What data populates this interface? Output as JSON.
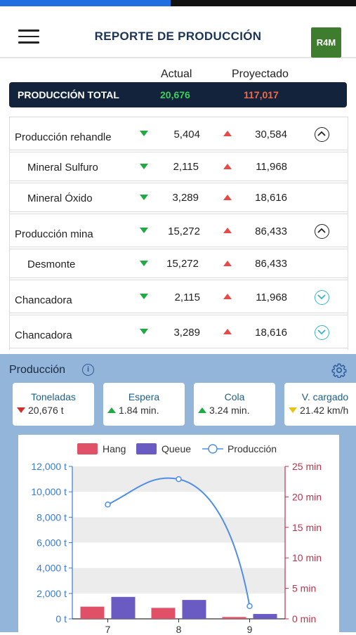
{
  "progress": {
    "fraction": 0.48,
    "colors": {
      "fill": "#1f6fe0",
      "track": "#111111"
    }
  },
  "header": {
    "title": "REPORTE DE PRODUCCIÓN",
    "menu_icon": "hamburger-menu-icon",
    "logo_text": "R4M"
  },
  "columns": {
    "actual": "Actual",
    "projected": "Proyectado"
  },
  "total": {
    "label": "PRODUCCIÓN TOTAL",
    "actual": "20,676",
    "projected": "117,017",
    "colors": {
      "actual": "#3ecf5a",
      "projected": "#f06a4b"
    }
  },
  "rows": [
    {
      "name": "Producción rehandle",
      "actual": "5,404",
      "projected": "30,584",
      "expanded": true
    },
    {
      "name": "Mineral Sulfuro",
      "actual": "2,115",
      "projected": "11,968"
    },
    {
      "name": "Mineral Óxido",
      "actual": "3,289",
      "projected": "18,616"
    },
    {
      "name": "Producción mina",
      "actual": "15,272",
      "projected": "86,433",
      "expanded": true
    },
    {
      "name": "Desmonte",
      "actual": "15,272",
      "projected": "86,433"
    },
    {
      "name": "Chancadora",
      "actual": "2,115",
      "projected": "11,968",
      "expanded": false
    },
    {
      "name": "Chancadora",
      "actual": "3,289",
      "projected": "18,616",
      "expanded": false
    }
  ],
  "section": {
    "title": "Producción",
    "info_icon": "info-icon",
    "settings_icon": "gear-icon"
  },
  "cards": [
    {
      "title": "Toneladas",
      "value": "20,676 t",
      "trend": "down"
    },
    {
      "title": "Espera",
      "value": "1.84 min.",
      "trend": "up"
    },
    {
      "title": "Cola",
      "value": "3.24 min.",
      "trend": "up"
    },
    {
      "title": "V. cargado",
      "value": "21.42 km/h",
      "trend": "neutral"
    }
  ],
  "chart_data": {
    "type": "bar",
    "legend": [
      "Hang",
      "Queue",
      "Producción"
    ],
    "legend_position": "top",
    "categories": [
      "7",
      "8",
      "9"
    ],
    "series": [
      {
        "name": "Hang",
        "axis": "right",
        "type": "bar",
        "values": [
          2.0,
          1.8,
          0.3
        ],
        "color": "#e05067"
      },
      {
        "name": "Queue",
        "axis": "right",
        "type": "bar",
        "values": [
          3.6,
          3.1,
          0.8
        ],
        "color": "#6a5bc3"
      },
      {
        "name": "Producción",
        "axis": "left",
        "type": "line",
        "values": [
          9000,
          11000,
          1000
        ],
        "color": "#4f8fe6"
      }
    ],
    "y_left": {
      "ticks": [
        "0 t",
        "2,000 t",
        "4,000 t",
        "6,000 t",
        "8,000 t",
        "10,000 t",
        "12,000 t"
      ],
      "range": [
        0,
        12000
      ],
      "color": "#3a7bd5"
    },
    "y_right": {
      "ticks": [
        "0 min",
        "5 min",
        "10 min",
        "15 min",
        "20 min",
        "25 min"
      ],
      "range": [
        0,
        25
      ],
      "color": "#c0304a"
    },
    "grid": true
  }
}
